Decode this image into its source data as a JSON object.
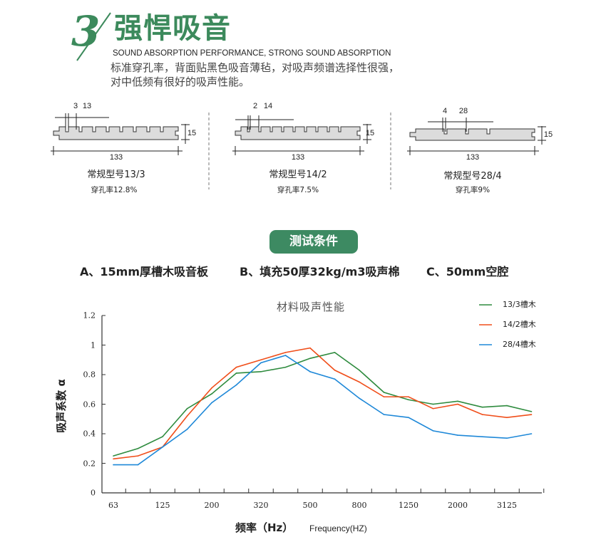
{
  "header": {
    "number": "3",
    "title": "强悍吸音",
    "subtitle": "SOUND ABSORPTION PERFORMANCE, STRONG SOUND ABSORPTION",
    "description_lines": [
      "标准穿孔率，背面贴黑色吸音薄毡，对吸声频谱选择性很强，",
      "对中低频有很好的吸声性能。"
    ],
    "accent_color": "#3c8a5c"
  },
  "profiles": [
    {
      "slot": "3",
      "pitch": "13",
      "thickness": "15",
      "width": "133",
      "name": "常规型号13/3",
      "rate": "穿孔率12.8%"
    },
    {
      "slot": "2",
      "pitch": "14",
      "thickness": "15",
      "width": "133",
      "name": "常规型号14/2",
      "rate": "穿孔率7.5%"
    },
    {
      "slot": "4",
      "pitch": "28",
      "thickness": "15",
      "width": "133",
      "name": "常规型号28/4",
      "rate": "穿孔率9%"
    }
  ],
  "test": {
    "button_label": "测试条件",
    "conditions": [
      "A、15mm厚槽木吸音板",
      "B、填充50厚32kg/m3吸声棉",
      "C、50mm空腔"
    ]
  },
  "chart_data": {
    "type": "line",
    "title": "材料吸声性能",
    "xlabel": "频率（Hz）",
    "xlabel_en": "Frequency(HZ)",
    "ylabel": "吸声系数 α",
    "ylim": [
      0,
      1.2
    ],
    "yticks": [
      "0",
      "0.2",
      "0.4",
      "0.6",
      "0.8",
      "1",
      "1.2"
    ],
    "xtick_labels": [
      "63",
      "125",
      "200",
      "320",
      "500",
      "800",
      "1250",
      "2000",
      "3125"
    ],
    "legend_position": "top-right",
    "grid": false,
    "series": [
      {
        "name": "13/3槽木",
        "color": "#2e8b3e",
        "values": [
          0.25,
          0.3,
          0.38,
          0.57,
          0.67,
          0.81,
          0.82,
          0.85,
          0.91,
          0.95,
          0.83,
          0.68,
          0.63,
          0.6,
          0.62,
          0.58,
          0.59,
          0.55
        ]
      },
      {
        "name": "14/2槽木",
        "color": "#f04e1a",
        "values": [
          0.23,
          0.25,
          0.31,
          0.52,
          0.71,
          0.85,
          0.9,
          0.95,
          0.98,
          0.83,
          0.75,
          0.65,
          0.65,
          0.57,
          0.6,
          0.53,
          0.51,
          0.53
        ]
      },
      {
        "name": "28/4槽木",
        "color": "#1e88d8",
        "values": [
          0.19,
          0.19,
          0.31,
          0.43,
          0.61,
          0.73,
          0.88,
          0.93,
          0.82,
          0.77,
          0.64,
          0.53,
          0.51,
          0.42,
          0.39,
          0.38,
          0.37,
          0.4
        ]
      }
    ]
  }
}
